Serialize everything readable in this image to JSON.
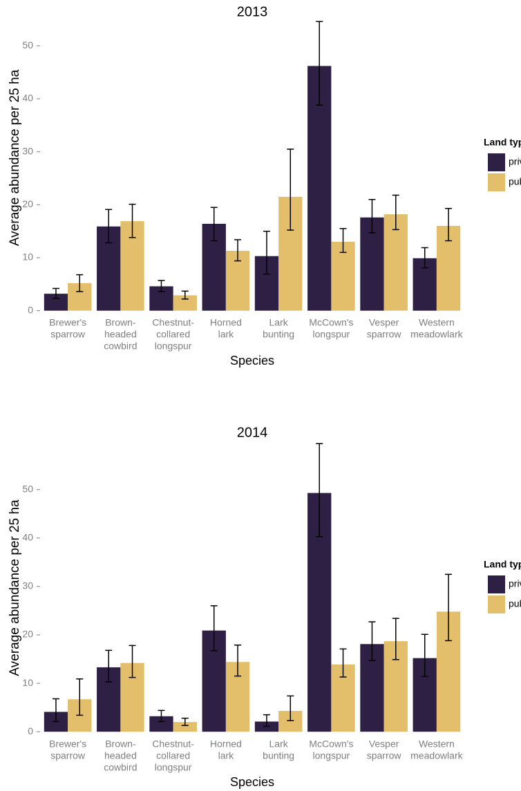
{
  "chart_data": [
    {
      "type": "bar",
      "title": "2013",
      "x_label": "Species",
      "y_label": "Average abundance per 25 ha",
      "categories": [
        [
          "Brewer's",
          "sparrow"
        ],
        [
          "Brown-",
          "headed",
          "cowbird"
        ],
        [
          "Chestnut-",
          "collared",
          "longspur"
        ],
        [
          "Horned",
          "lark"
        ],
        [
          "Lark",
          "bunting"
        ],
        [
          "McCown's",
          "longspur"
        ],
        [
          "Vesper",
          "sparrow"
        ],
        [
          "Western",
          "meadowlark"
        ]
      ],
      "legend_title": "Land type",
      "series": [
        {
          "name": "private",
          "color": "#2e1f45",
          "values": [
            3.2,
            15.9,
            4.6,
            16.4,
            10.3,
            46.2,
            17.6,
            9.9
          ],
          "lower": [
            2.3,
            12.8,
            3.6,
            13.2,
            6.9,
            38.8,
            14.7,
            8.1
          ],
          "upper": [
            4.2,
            19.1,
            5.7,
            19.5,
            15.0,
            54.6,
            21.0,
            11.9
          ]
        },
        {
          "name": "public",
          "color": "#e4bf6b",
          "values": [
            5.2,
            16.9,
            2.9,
            11.3,
            21.5,
            13.0,
            18.2,
            16.0
          ],
          "lower": [
            3.6,
            13.8,
            2.2,
            9.4,
            15.2,
            11.0,
            15.3,
            13.2
          ],
          "upper": [
            6.8,
            20.1,
            3.7,
            13.4,
            30.5,
            15.5,
            21.8,
            19.3
          ]
        }
      ],
      "ylim": [
        -0.3,
        58
      ],
      "yticks": [
        0,
        10,
        20,
        30,
        40,
        50
      ]
    },
    {
      "type": "bar",
      "title": "2014",
      "x_label": "Species",
      "y_label": "Average abundance per 25 ha",
      "categories": [
        [
          "Brewer's",
          "sparrow"
        ],
        [
          "Brown-",
          "headed",
          "cowbird"
        ],
        [
          "Chestnut-",
          "collared",
          "longspur"
        ],
        [
          "Horned",
          "lark"
        ],
        [
          "Lark",
          "bunting"
        ],
        [
          "McCown's",
          "longspur"
        ],
        [
          "Vesper",
          "sparrow"
        ],
        [
          "Western",
          "meadowlark"
        ]
      ],
      "legend_title": "Land type",
      "series": [
        {
          "name": "private",
          "color": "#2e1f45",
          "values": [
            4.1,
            13.3,
            3.2,
            20.9,
            2.1,
            49.3,
            18.1,
            15.2
          ],
          "lower": [
            2.1,
            10.3,
            2.1,
            16.7,
            1.1,
            40.3,
            14.7,
            11.4
          ],
          "upper": [
            6.8,
            16.8,
            4.4,
            26.0,
            3.5,
            59.5,
            22.7,
            20.1
          ]
        },
        {
          "name": "public",
          "color": "#e4bf6b",
          "values": [
            6.7,
            14.2,
            2.0,
            14.4,
            4.3,
            13.9,
            18.7,
            24.8
          ],
          "lower": [
            3.4,
            11.2,
            1.3,
            11.5,
            2.3,
            11.3,
            14.9,
            18.8
          ],
          "upper": [
            10.9,
            17.8,
            2.8,
            17.9,
            7.4,
            17.1,
            23.4,
            32.5
          ]
        }
      ],
      "ylim": [
        -0.4,
        59.8
      ],
      "yticks": [
        0,
        10,
        20,
        30,
        40,
        50
      ]
    }
  ]
}
